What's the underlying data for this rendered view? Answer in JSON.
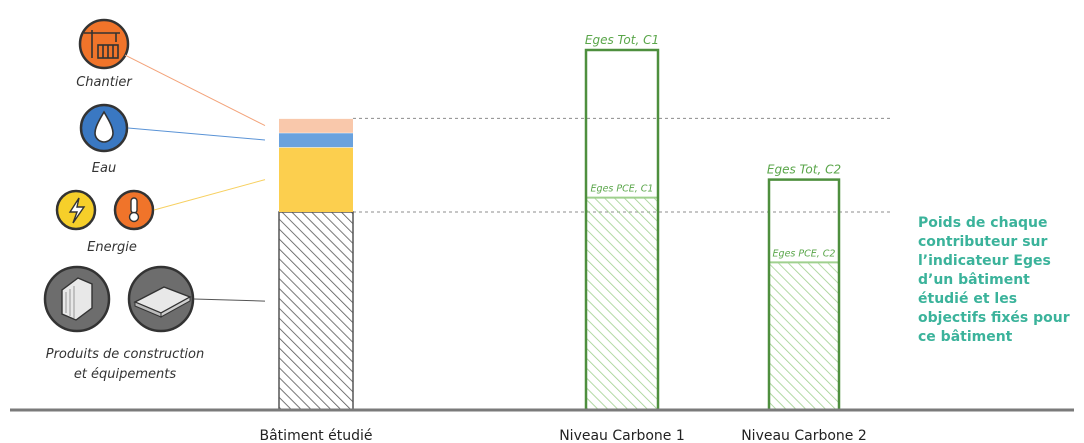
{
  "icons": {
    "chantier": {
      "label": "Chantier",
      "icon": "crane-building-icon",
      "color": "#f0742a"
    },
    "eau": {
      "label": "Eau",
      "icon": "water-drop-icon",
      "color": "#3a78c2"
    },
    "energie": {
      "label": "Energie",
      "icons": [
        "lightning-icon",
        "thermometer-icon"
      ],
      "colors": [
        "#f6cf2a",
        "#f0742a"
      ]
    },
    "produits": {
      "label_line1": "Produits de construction",
      "label_line2": "et équipements",
      "icons": [
        "insulation-panel-icon",
        "floor-panel-icon"
      ],
      "color": "#6d6d6d"
    }
  },
  "side_note": "Poids de chaque contributeur sur l’indicateur Eges d’un bâtiment étudié et les objectifs fixés pour ce bâtiment",
  "chart_data": {
    "type": "bar",
    "categories": [
      "Bâtiment étudié",
      "Niveau Carbone 1",
      "Niveau Carbone 2"
    ],
    "ylim": [
      0,
      100
    ],
    "grid": false,
    "stacked": [
      {
        "category": "Bâtiment étudié",
        "segments": [
          {
            "name": "Produits de construction et équipements",
            "value": 55,
            "color": "#555555",
            "hatch": true
          },
          {
            "name": "Energie",
            "value": 18,
            "color": "#fccf4e"
          },
          {
            "name": "Eau",
            "value": 4,
            "color": "#6aa2de"
          },
          {
            "name": "Chantier",
            "value": 4,
            "color": "#f9c8ab"
          }
        ]
      }
    ],
    "thresholds": [
      {
        "category": "Niveau Carbone 1",
        "tot_label": "Eges Tot, C1",
        "tot_value": 100,
        "pce_label": "Eges PCE, C1",
        "pce_value": 59
      },
      {
        "category": "Niveau Carbone 2",
        "tot_label": "Eges Tot, C2",
        "tot_value": 64,
        "pce_label": "Eges PCE, C2",
        "pce_value": 41
      }
    ],
    "colors": {
      "target_outline": "#4e8f3e",
      "target_hatch": "#9fd08e",
      "label": "#5aa64a"
    }
  }
}
